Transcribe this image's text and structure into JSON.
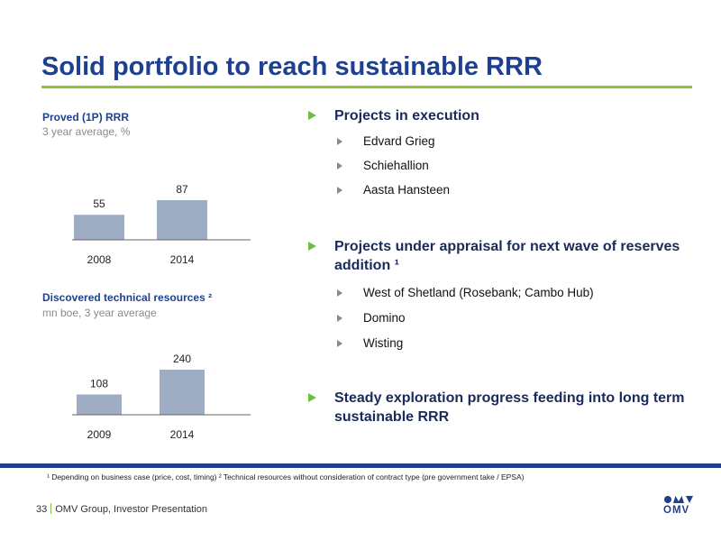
{
  "slide": {
    "title": "Solid portfolio to reach sustainable RRR",
    "footnote": "¹ Depending on business case (price, cost, timing) ² Technical resources without consideration of contract type (pre government take / EPSA)",
    "page_number": "33",
    "footer_text": "OMV Group, Investor Presentation",
    "logo_text": "OMV"
  },
  "colors": {
    "title": "#1f3f8f",
    "accent_green": "#8ac43f",
    "bar": "#9eadc4",
    "bottom_bar": "#1f3f8f"
  },
  "chart_data": [
    {
      "type": "bar",
      "title": "Proved (1P) RRR",
      "subtitle": "3 year average, %",
      "categories": [
        "2008",
        "2014"
      ],
      "values": [
        55,
        87
      ],
      "ylim": [
        0,
        87
      ],
      "grid": false
    },
    {
      "type": "bar",
      "title": "Discovered technical resources ²",
      "subtitle": "mn boe, 3 year average",
      "categories": [
        "2009",
        "2014"
      ],
      "values": [
        108,
        240
      ],
      "ylim": [
        0,
        240
      ],
      "grid": false
    }
  ],
  "bullets": [
    {
      "text": "Projects in execution",
      "sub": [
        "Edvard Grieg",
        "Schiehallion",
        "Aasta Hansteen"
      ]
    },
    {
      "text": "Projects under appraisal for next wave of reserves addition ¹",
      "sub": [
        "West of Shetland (Rosebank; Cambo Hub)",
        "Domino",
        "Wisting"
      ]
    },
    {
      "text": "Steady exploration progress feeding into long term sustainable RRR",
      "sub": []
    }
  ]
}
